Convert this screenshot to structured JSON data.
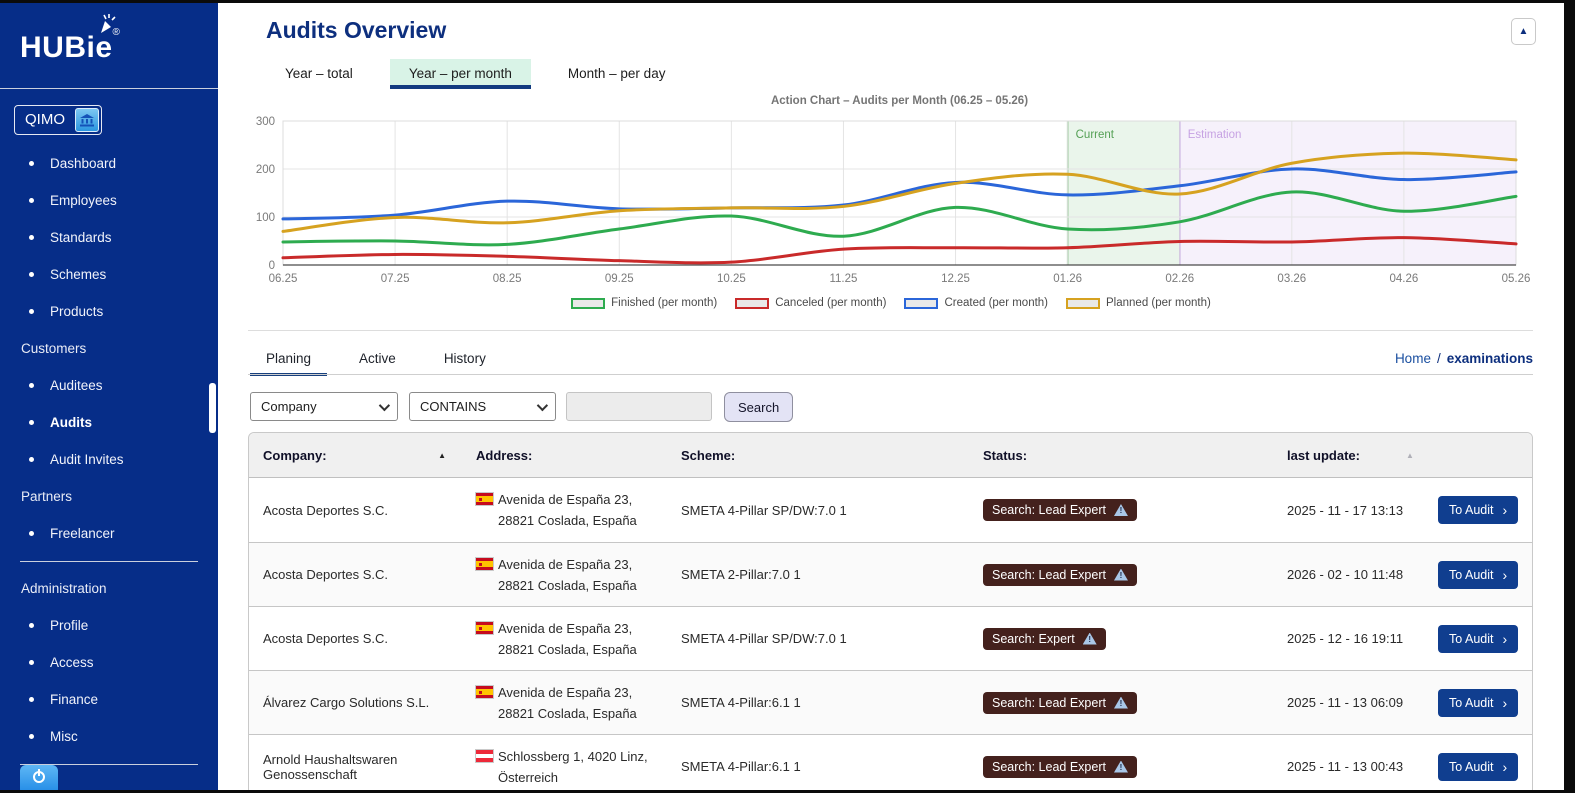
{
  "window": {
    "collapse_icon": "▲"
  },
  "sidebar": {
    "logo": {
      "text": "HUBie",
      "reg": "®"
    },
    "org": {
      "label": "QIMO"
    },
    "sections": [
      {
        "label": "",
        "items": [
          {
            "label": "Dashboard"
          },
          {
            "label": "Employees"
          },
          {
            "label": "Standards"
          },
          {
            "label": "Schemes"
          },
          {
            "label": "Products"
          }
        ]
      },
      {
        "label": "Customers",
        "items": [
          {
            "label": "Auditees"
          },
          {
            "label": "Audits",
            "active": true
          },
          {
            "label": "Audit Invites"
          }
        ]
      },
      {
        "label": "Partners",
        "items": [
          {
            "label": "Freelancer"
          }
        ],
        "divider_after": true
      },
      {
        "label": "Administration",
        "items": [
          {
            "label": "Profile"
          },
          {
            "label": "Access"
          },
          {
            "label": "Finance"
          },
          {
            "label": "Misc"
          }
        ],
        "divider_after": true
      }
    ]
  },
  "header": {
    "title": "Audits Overview"
  },
  "chart_tabs": [
    {
      "label": "Year – total"
    },
    {
      "label": "Year – per month",
      "active": true
    },
    {
      "label": "Month – per day"
    }
  ],
  "chart_data": {
    "type": "line",
    "title": "Action Chart – Audits per Month (06.25 – 05.26)",
    "x": [
      "06.25",
      "07.25",
      "08.25",
      "09.25",
      "10.25",
      "11.25",
      "12.25",
      "01.26",
      "02.26",
      "03.26",
      "04.26",
      "05.26"
    ],
    "ylim": [
      0,
      300
    ],
    "yticks": [
      0,
      100,
      200,
      300
    ],
    "grid": true,
    "legend_position": "bottom",
    "series": [
      {
        "name": "Finished (per month)",
        "color": "#2eab4f",
        "values": [
          48,
          50,
          43,
          75,
          102,
          60,
          120,
          75,
          90,
          152,
          112,
          143
        ]
      },
      {
        "name": "Canceled (per month)",
        "color": "#c92a2a",
        "values": [
          15,
          22,
          18,
          9,
          6,
          33,
          36,
          36,
          49,
          48,
          57,
          44
        ]
      },
      {
        "name": "Created (per month)",
        "color": "#2b66d9",
        "values": [
          96,
          104,
          133,
          117,
          119,
          125,
          172,
          146,
          165,
          200,
          178,
          194
        ]
      },
      {
        "name": "Planned (per month)",
        "color": "#d6a220",
        "values": [
          70,
          99,
          88,
          113,
          119,
          122,
          170,
          189,
          148,
          212,
          233,
          219
        ]
      }
    ],
    "regions": [
      {
        "label": "Current",
        "from": "01.26",
        "to": "02.26",
        "fill": "#eaf5eb",
        "border": "#57a85a",
        "label_color": "#55a055"
      },
      {
        "label": "Estimation",
        "from": "02.26",
        "to": "05.26",
        "fill": "#f6f1fb",
        "border": "#a06cd5",
        "label_color": "#c7a3e3"
      }
    ]
  },
  "list_tabs": [
    {
      "label": "Planing",
      "active": true
    },
    {
      "label": "Active"
    },
    {
      "label": "History"
    }
  ],
  "breadcrumb": {
    "home": "Home",
    "sep": "/",
    "current": "examinations"
  },
  "filter": {
    "field_select": "Company",
    "operator_select": "CONTAINS",
    "search_value": "",
    "search_button": "Search"
  },
  "table": {
    "headers": [
      {
        "label": "Company:",
        "sort": "▲",
        "sort_active": true
      },
      {
        "label": "Address:"
      },
      {
        "label": "Scheme:"
      },
      {
        "label": "Status:"
      },
      {
        "label": "last update:",
        "sort": "▲",
        "sort_active": false
      }
    ],
    "action_label": "To Audit",
    "action_chevron": "›",
    "warn_icon": "!",
    "rows": [
      {
        "company": "Acosta Deportes S.C.",
        "flag": "es",
        "address_line1": "Avenida de España 23,",
        "address_line2": "28821 Coslada, España",
        "scheme": "SMETA 4-Pillar SP/DW:7.0 1",
        "status": "Search: Lead Expert",
        "last_update": "2025 - 11 - 17 13:13"
      },
      {
        "company": "Acosta Deportes S.C.",
        "flag": "es",
        "address_line1": "Avenida de España 23,",
        "address_line2": "28821 Coslada, España",
        "scheme": "SMETA 2-Pillar:7.0 1",
        "status": "Search: Lead Expert",
        "last_update": "2026 - 02 - 10 11:48"
      },
      {
        "company": "Acosta Deportes S.C.",
        "flag": "es",
        "address_line1": "Avenida de España 23,",
        "address_line2": "28821 Coslada, España",
        "scheme": "SMETA 4-Pillar SP/DW:7.0 1",
        "status": "Search: Expert",
        "last_update": "2025 - 12 - 16 19:11"
      },
      {
        "company": "Álvarez Cargo Solutions S.L.",
        "flag": "es",
        "address_line1": "Avenida de España 23,",
        "address_line2": "28821 Coslada, España",
        "scheme": "SMETA 4-Pillar:6.1 1",
        "status": "Search: Lead Expert",
        "last_update": "2025 - 11 - 13 06:09"
      },
      {
        "company": "Arnold Haushaltswaren Genossenschaft",
        "flag": "at",
        "address_line1": "Schlossberg 1, 4020 Linz,",
        "address_line2": "Österreich",
        "scheme": "SMETA 4-Pillar:6.1 1",
        "status": "Search: Lead Expert",
        "last_update": "2025 - 11 - 13 00:43"
      }
    ]
  }
}
